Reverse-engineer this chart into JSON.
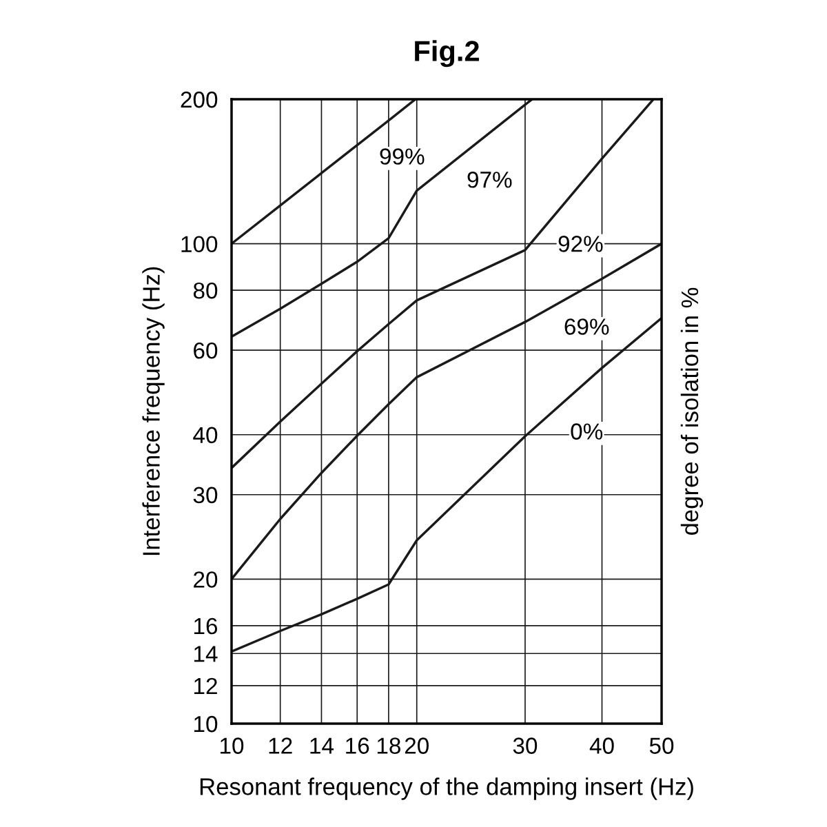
{
  "chart_data": {
    "type": "line",
    "title": "Fig.2",
    "xlabel": "Resonant frequency of the damping insert (Hz)",
    "ylabel": "Interference frequency (Hz)",
    "y2label": "degree of isolation in %",
    "xlim": [
      10,
      50
    ],
    "xticks": [
      10,
      12,
      14,
      16,
      18,
      20,
      30,
      40,
      50
    ],
    "ylim": [
      10,
      200
    ],
    "yticks": [
      10,
      12,
      14,
      16,
      20,
      30,
      40,
      60,
      80,
      100,
      200
    ],
    "grid": true,
    "log": "xy",
    "marker": "none",
    "line_style": "solid",
    "series": [
      {
        "color": "#1a1a1a",
        "x": [
          10,
          12,
          14,
          16,
          18,
          19.9
        ],
        "values": [
          100,
          120.1,
          140.3,
          160.5,
          180.6,
          200
        ]
      },
      {
        "color": "#1a1a1a",
        "x": [
          10,
          12,
          14,
          16,
          18,
          20,
          30,
          30.8
        ],
        "values": [
          64,
          73.2,
          82.5,
          91.7,
          102.7,
          129,
          194.8,
          200
        ]
      },
      {
        "color": "#1a1a1a",
        "x": [
          10,
          12,
          14,
          16,
          18,
          20,
          30,
          40,
          48.5
        ],
        "values": [
          34.1,
          42.6,
          51.1,
          59.7,
          68.0,
          76.2,
          97.0,
          150.4,
          200
        ]
      },
      {
        "color": "#1a1a1a",
        "x": [
          10,
          12,
          14,
          16,
          18,
          20,
          30,
          40,
          50
        ],
        "values": [
          20,
          26.7,
          33.3,
          39.8,
          46.3,
          52.7,
          68.7,
          84.5,
          100
        ]
      },
      {
        "color": "#1a1a1a",
        "x": [
          10,
          12,
          14,
          16,
          18,
          20,
          30,
          40,
          50
        ],
        "values": [
          14.13,
          15.6,
          16.9,
          18.2,
          19.5,
          24.1,
          39.7,
          55.1,
          70
        ]
      }
    ],
    "annotations": [
      "99%",
      "97%",
      "92%",
      "69%",
      "0%"
    ]
  }
}
